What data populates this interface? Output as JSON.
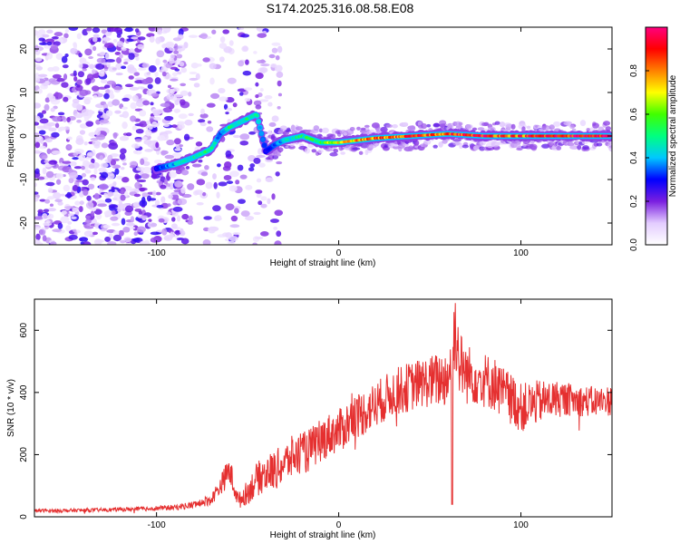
{
  "title": "S174.2025.316.08.58.E08",
  "chart_data": [
    {
      "type": "heatmap",
      "name": "spectrogram",
      "xlabel": "Height of straight line (km)",
      "ylabel": "Frequency (Hz)",
      "xlim": [
        -167,
        150
      ],
      "ylim": [
        -25,
        25
      ],
      "x_ticks": [
        -100,
        0,
        100
      ],
      "y_ticks": [
        -20,
        -10,
        0,
        10,
        20
      ],
      "colorbar": {
        "label": "Normalized spectral amplitude",
        "range": [
          0,
          1
        ],
        "ticks": [
          "0.0",
          "0.2",
          "0.4",
          "0.6",
          "0.8"
        ],
        "colors": [
          "#ffffff",
          "#e3ccff",
          "#7a1fe0",
          "#0000ff",
          "#00c8ff",
          "#00ff80",
          "#40ff00",
          "#ffff00",
          "#ff8000",
          "#ff0000",
          "#ff007f"
        ]
      },
      "ridge": {
        "x": [
          -100,
          -90,
          -80,
          -75,
          -70,
          -65,
          -60,
          -55,
          -50,
          -45,
          -40,
          -35,
          -30,
          -20,
          -10,
          0,
          20,
          40,
          60,
          80,
          100,
          120,
          148
        ],
        "freq": [
          -7.5,
          -6.5,
          -5,
          -4,
          -3,
          0.5,
          2,
          3,
          4,
          5,
          -3.5,
          -2,
          -1,
          0,
          -1.5,
          -1.5,
          -0.5,
          0,
          0.5,
          0,
          0,
          0,
          0
        ],
        "amp": [
          0.3,
          0.4,
          0.45,
          0.5,
          0.5,
          0.35,
          0.5,
          0.45,
          0.5,
          0.45,
          0.3,
          0.35,
          0.4,
          0.5,
          0.55,
          0.7,
          0.8,
          0.85,
          0.85,
          0.9,
          0.85,
          0.9,
          0.95
        ]
      }
    },
    {
      "type": "line",
      "name": "snr",
      "xlabel": "Height of straight line (km)",
      "ylabel": "SNR (10 * v/v)",
      "xlim": [
        -167,
        150
      ],
      "ylim": [
        0,
        700
      ],
      "x_ticks": [
        -100,
        0,
        100
      ],
      "y_ticks": [
        0,
        200,
        400,
        600
      ],
      "line_color": "#e53030",
      "series": [
        {
          "name": "SNR",
          "x": [
            -167,
            -150,
            -130,
            -110,
            -90,
            -80,
            -70,
            -65,
            -60,
            -55,
            -50,
            -45,
            -40,
            -35,
            -30,
            -25,
            -20,
            -15,
            -10,
            -5,
            0,
            5,
            10,
            15,
            20,
            25,
            30,
            35,
            40,
            45,
            50,
            55,
            60,
            62,
            64,
            66,
            70,
            75,
            80,
            85,
            90,
            95,
            100,
            105,
            110,
            115,
            120,
            125,
            130,
            135,
            140,
            145,
            150
          ],
          "y": [
            20,
            20,
            22,
            25,
            30,
            38,
            55,
            100,
            150,
            50,
            80,
            120,
            140,
            150,
            170,
            195,
            200,
            220,
            245,
            265,
            275,
            300,
            325,
            340,
            360,
            380,
            400,
            410,
            420,
            430,
            435,
            440,
            450,
            520,
            620,
            500,
            460,
            450,
            440,
            430,
            400,
            380,
            350,
            360,
            370,
            375,
            380,
            378,
            375,
            372,
            370,
            372,
            375
          ],
          "spread": [
            5,
            6,
            6,
            7,
            9,
            12,
            18,
            30,
            50,
            25,
            40,
            55,
            60,
            65,
            65,
            70,
            70,
            70,
            70,
            70,
            70,
            75,
            75,
            75,
            75,
            75,
            75,
            80,
            80,
            80,
            85,
            90,
            100,
            120,
            140,
            110,
            100,
            90,
            90,
            90,
            85,
            85,
            80,
            75,
            70,
            65,
            60,
            55,
            50,
            50,
            50,
            50,
            50
          ]
        }
      ]
    }
  ]
}
